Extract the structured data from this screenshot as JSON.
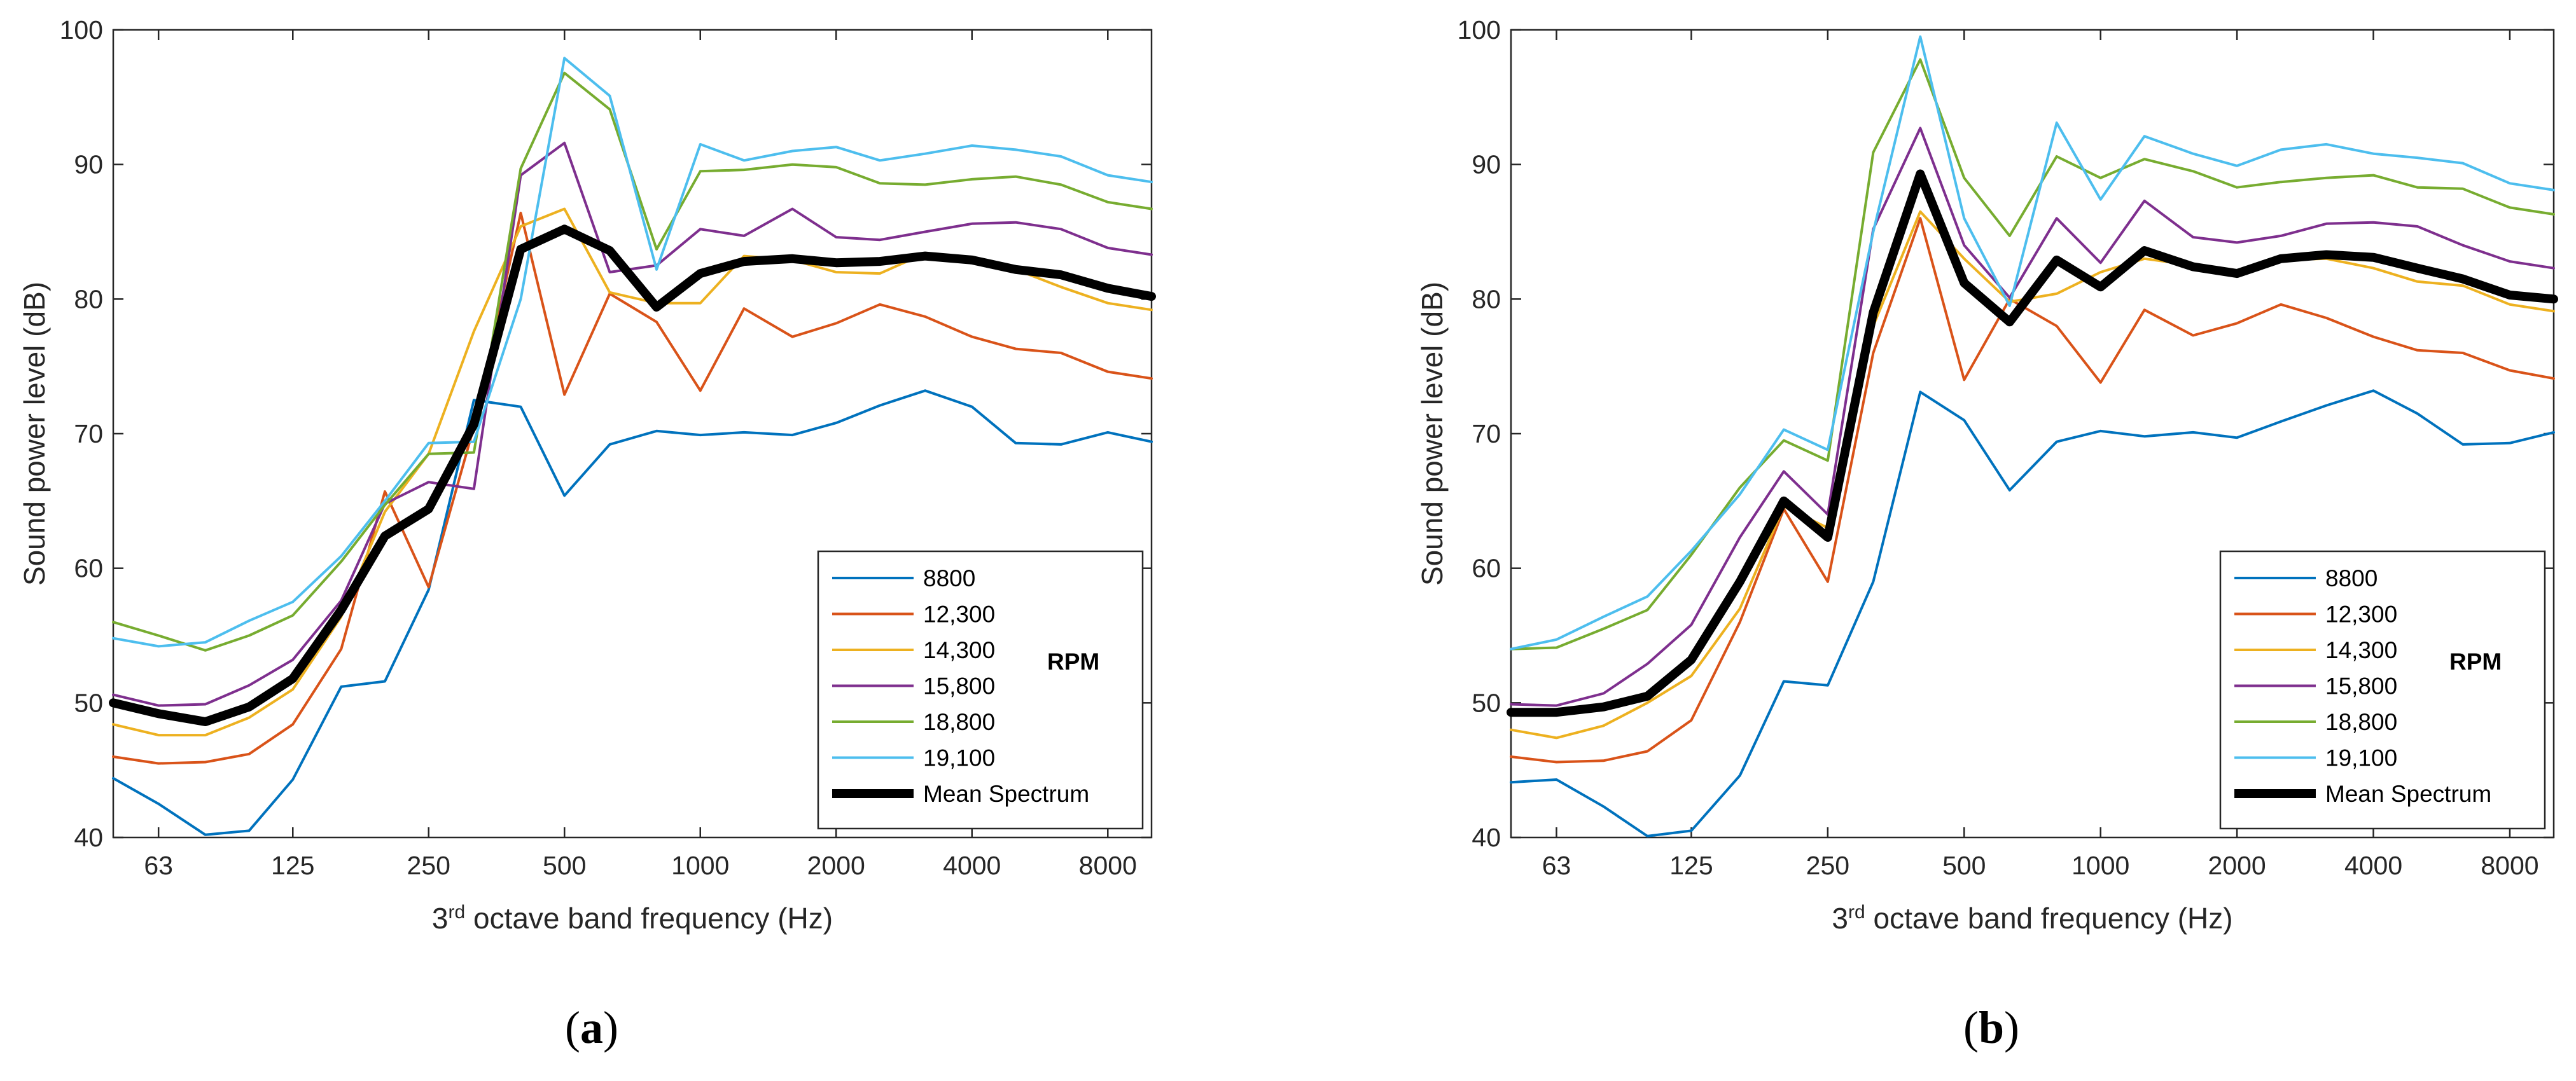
{
  "chart_data": [
    {
      "type": "line",
      "panel_label": "a",
      "xlabel_prefix": "3",
      "xlabel_sup": "rd",
      "xlabel_suffix": " octave band frequency (Hz)",
      "ylabel": "Sound power level (dB)",
      "xscale": "log",
      "ylim": [
        40,
        100
      ],
      "yticks": [
        40,
        50,
        60,
        70,
        80,
        90,
        100
      ],
      "xticks": [
        63,
        125,
        250,
        500,
        1000,
        2000,
        4000,
        8000
      ],
      "x": [
        50,
        63,
        80,
        100,
        125,
        160,
        200,
        250,
        315,
        400,
        500,
        630,
        800,
        1000,
        1250,
        1600,
        2000,
        2500,
        3150,
        4000,
        5000,
        6300,
        8000,
        10000
      ],
      "legend_title": "RPM",
      "legend_position": "lower-right",
      "grid": false,
      "series": [
        {
          "name": "8800",
          "color": "#0072BD",
          "values": [
            44.4,
            42.5,
            40.2,
            40.5,
            44.3,
            51.2,
            51.6,
            58.4,
            72.5,
            72.0,
            65.4,
            69.2,
            70.2,
            69.9,
            70.1,
            69.9,
            70.8,
            72.1,
            73.2,
            72.0,
            69.3,
            69.2,
            70.1,
            69.4
          ]
        },
        {
          "name": "12,300",
          "color": "#D95319",
          "values": [
            46.0,
            45.5,
            45.6,
            46.2,
            48.4,
            54.0,
            65.7,
            58.6,
            70.5,
            86.4,
            72.9,
            80.4,
            78.3,
            73.2,
            79.3,
            77.2,
            78.2,
            79.6,
            78.7,
            77.2,
            76.3,
            76.0,
            74.6,
            74.1
          ]
        },
        {
          "name": "14,300",
          "color": "#EDB120",
          "values": [
            48.4,
            47.6,
            47.6,
            48.9,
            51.0,
            56.4,
            64.2,
            68.5,
            77.6,
            85.4,
            86.7,
            80.5,
            79.7,
            79.7,
            83.2,
            82.9,
            82.0,
            81.9,
            83.4,
            83.0,
            82.2,
            80.9,
            79.7,
            79.2
          ]
        },
        {
          "name": "15,800",
          "color": "#7E2F8E",
          "values": [
            50.6,
            49.8,
            49.9,
            51.3,
            53.2,
            57.6,
            64.8,
            66.4,
            65.9,
            89.2,
            91.6,
            82.0,
            82.5,
            85.2,
            84.7,
            86.7,
            84.6,
            84.4,
            85.0,
            85.6,
            85.7,
            85.2,
            83.8,
            83.3
          ]
        },
        {
          "name": "18,800",
          "color": "#77AC30",
          "values": [
            56.0,
            55.0,
            53.9,
            55.0,
            56.5,
            60.5,
            64.7,
            68.5,
            68.6,
            89.7,
            96.8,
            94.1,
            83.7,
            89.5,
            89.6,
            90.0,
            89.8,
            88.6,
            88.5,
            88.9,
            89.1,
            88.5,
            87.2,
            86.7
          ]
        },
        {
          "name": "19,100",
          "color": "#4DBEEE",
          "values": [
            54.8,
            54.2,
            54.5,
            56.1,
            57.5,
            60.9,
            65.0,
            69.3,
            69.4,
            80.0,
            97.9,
            95.1,
            82.2,
            91.5,
            90.3,
            91.0,
            91.3,
            90.3,
            90.8,
            91.4,
            91.1,
            90.6,
            89.2,
            88.7
          ]
        },
        {
          "name": "Mean Spectrum",
          "color": "#000000",
          "values": [
            50.0,
            49.2,
            48.6,
            49.7,
            51.8,
            56.9,
            62.4,
            64.4,
            70.7,
            83.7,
            85.2,
            83.6,
            79.4,
            81.9,
            82.8,
            83.0,
            82.7,
            82.8,
            83.2,
            82.9,
            82.2,
            81.8,
            80.8,
            80.2
          ]
        }
      ]
    },
    {
      "type": "line",
      "panel_label": "b",
      "xlabel_prefix": "3",
      "xlabel_sup": "rd",
      "xlabel_suffix": " octave band frequency (Hz)",
      "ylabel": "Sound power level (dB)",
      "xscale": "log",
      "ylim": [
        40,
        100
      ],
      "yticks": [
        40,
        50,
        60,
        70,
        80,
        90,
        100
      ],
      "xticks": [
        63,
        125,
        250,
        500,
        1000,
        2000,
        4000,
        8000
      ],
      "x": [
        50,
        63,
        80,
        100,
        125,
        160,
        200,
        250,
        315,
        400,
        500,
        630,
        800,
        1000,
        1250,
        1600,
        2000,
        2500,
        3150,
        4000,
        5000,
        6300,
        8000,
        10000
      ],
      "legend_title": "RPM",
      "legend_position": "lower-right",
      "grid": false,
      "series": [
        {
          "name": "8800",
          "color": "#0072BD",
          "values": [
            44.1,
            44.3,
            42.3,
            40.1,
            40.5,
            44.6,
            51.6,
            51.3,
            59.0,
            73.1,
            71.0,
            65.8,
            69.4,
            70.2,
            69.8,
            70.1,
            69.7,
            70.9,
            72.1,
            73.2,
            71.5,
            69.2,
            69.3,
            70.1
          ]
        },
        {
          "name": "12,300",
          "color": "#D95319",
          "values": [
            46.0,
            45.6,
            45.7,
            46.4,
            48.7,
            56.0,
            64.4,
            59.0,
            76.0,
            86.0,
            74.0,
            80.0,
            78.0,
            73.8,
            79.2,
            77.3,
            78.2,
            79.6,
            78.6,
            77.2,
            76.2,
            76.0,
            74.7,
            74.1
          ]
        },
        {
          "name": "14,300",
          "color": "#EDB120",
          "values": [
            48.0,
            47.4,
            48.3,
            50.0,
            52.0,
            57.0,
            64.6,
            63.0,
            78.0,
            86.5,
            83.0,
            79.8,
            80.4,
            82.0,
            83.0,
            82.5,
            81.7,
            82.9,
            83.0,
            82.3,
            81.3,
            81.0,
            79.6,
            79.1
          ]
        },
        {
          "name": "15,800",
          "color": "#7E2F8E",
          "values": [
            49.9,
            49.8,
            50.7,
            52.9,
            55.8,
            62.3,
            67.2,
            64.0,
            85.2,
            92.7,
            84.0,
            80.1,
            86.0,
            82.7,
            87.3,
            84.6,
            84.2,
            84.7,
            85.6,
            85.7,
            85.4,
            84.0,
            82.8,
            82.3
          ]
        },
        {
          "name": "18,800",
          "color": "#77AC30",
          "values": [
            54.0,
            54.1,
            55.5,
            56.9,
            61.0,
            66.0,
            69.5,
            68.0,
            90.9,
            97.8,
            89.0,
            84.7,
            90.6,
            89.0,
            90.4,
            89.5,
            88.3,
            88.7,
            89.0,
            89.2,
            88.3,
            88.2,
            86.8,
            86.3
          ]
        },
        {
          "name": "19,100",
          "color": "#4DBEEE",
          "values": [
            54.0,
            54.7,
            56.4,
            57.9,
            61.3,
            65.5,
            70.3,
            68.8,
            85.0,
            99.5,
            86.0,
            79.5,
            93.1,
            87.4,
            92.1,
            90.8,
            89.9,
            91.1,
            91.5,
            90.8,
            90.5,
            90.1,
            88.6,
            88.1
          ]
        },
        {
          "name": "Mean Spectrum",
          "color": "#000000",
          "values": [
            49.3,
            49.3,
            49.7,
            50.5,
            53.2,
            59.0,
            65.0,
            62.3,
            79.0,
            89.3,
            81.2,
            78.3,
            82.9,
            80.9,
            83.6,
            82.4,
            81.9,
            83.0,
            83.3,
            83.1,
            82.3,
            81.5,
            80.3,
            80.0
          ]
        }
      ]
    }
  ]
}
